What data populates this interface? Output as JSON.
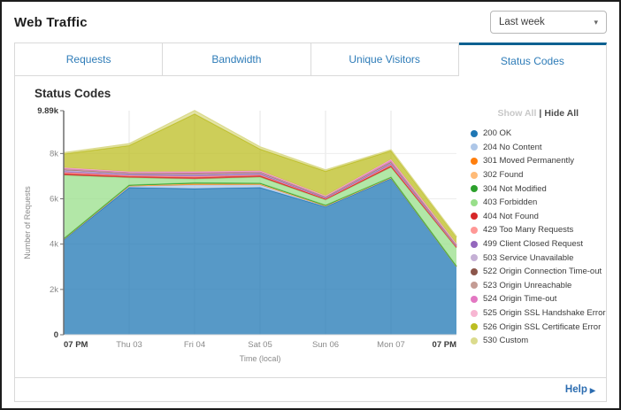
{
  "header": {
    "title": "Web Traffic",
    "period_selector": {
      "value": "Last week",
      "caret_icon": "▾"
    }
  },
  "tabs": [
    {
      "label": "Requests",
      "active": false
    },
    {
      "label": "Bandwidth",
      "active": false
    },
    {
      "label": "Unique Visitors",
      "active": false
    },
    {
      "label": "Status Codes",
      "active": true
    }
  ],
  "panel": {
    "title": "Status Codes"
  },
  "legend": {
    "show_all": "Show All",
    "separator": "|",
    "hide_all": "Hide All"
  },
  "footer": {
    "help_label": "Help",
    "help_arrow": "▶"
  },
  "chart_data": {
    "type": "area",
    "stacked": true,
    "title": "Status Codes",
    "xlabel": "Time (local)",
    "ylabel": "Number of Requests",
    "grid": true,
    "legend_position": "right",
    "ylim": [
      0,
      9890
    ],
    "y_ticks": [
      {
        "value": 0,
        "label": "0"
      },
      {
        "value": 2000,
        "label": "2k"
      },
      {
        "value": 4000,
        "label": "4k"
      },
      {
        "value": 6000,
        "label": "6k"
      },
      {
        "value": 8000,
        "label": "8k"
      },
      {
        "value": 9890,
        "label": "9.89k"
      }
    ],
    "categories": [
      "07 PM",
      "Thu 03",
      "Fri 04",
      "Sat 05",
      "Sun 06",
      "Mon 07",
      "07 PM"
    ],
    "series": [
      {
        "code": "200",
        "name": "200 OK",
        "color": "#1f77b4",
        "values": [
          4200,
          6500,
          6450,
          6500,
          5650,
          6900,
          3000
        ]
      },
      {
        "code": "204",
        "name": "204 No Content",
        "color": "#aec7e8",
        "values": [
          15,
          60,
          160,
          120,
          30,
          25,
          10
        ]
      },
      {
        "code": "301",
        "name": "301 Moved Permanently",
        "color": "#ff7f0e",
        "values": [
          8,
          12,
          30,
          20,
          10,
          10,
          5
        ]
      },
      {
        "code": "302",
        "name": "302 Found",
        "color": "#ffbb78",
        "values": [
          8,
          12,
          25,
          18,
          10,
          8,
          5
        ]
      },
      {
        "code": "304",
        "name": "304 Not Modified",
        "color": "#2ca02c",
        "values": [
          12,
          20,
          40,
          30,
          15,
          12,
          8
        ]
      },
      {
        "code": "403",
        "name": "403 Forbidden",
        "color": "#98df8a",
        "values": [
          2800,
          330,
          170,
          270,
          240,
          440,
          800
        ]
      },
      {
        "code": "404",
        "name": "404 Not Found",
        "color": "#d62728",
        "values": [
          70,
          55,
          65,
          60,
          40,
          60,
          45
        ]
      },
      {
        "code": "429",
        "name": "429 Too Many Requests",
        "color": "#ff9896",
        "values": [
          60,
          45,
          50,
          45,
          30,
          50,
          30
        ]
      },
      {
        "code": "499",
        "name": "499 Client Closed Request",
        "color": "#9467bd",
        "values": [
          35,
          30,
          40,
          30,
          20,
          40,
          20
        ]
      },
      {
        "code": "503",
        "name": "503 Service Unavailable",
        "color": "#c5b0d5",
        "values": [
          65,
          50,
          55,
          50,
          30,
          50,
          30
        ]
      },
      {
        "code": "522",
        "name": "522 Origin Connection Time-out",
        "color": "#8c564b",
        "values": [
          20,
          18,
          25,
          20,
          12,
          25,
          12
        ]
      },
      {
        "code": "523",
        "name": "523 Origin Unreachable",
        "color": "#c49c94",
        "values": [
          15,
          12,
          18,
          15,
          10,
          18,
          8
        ]
      },
      {
        "code": "524",
        "name": "524 Origin Time-out",
        "color": "#e377c2",
        "values": [
          55,
          45,
          60,
          50,
          30,
          85,
          40
        ]
      },
      {
        "code": "525",
        "name": "525 Origin SSL Handshake Error",
        "color": "#f7b6d2",
        "values": [
          15,
          12,
          18,
          15,
          10,
          20,
          8
        ]
      },
      {
        "code": "526",
        "name": "526 Origin SSL Certificate Error",
        "color": "#bcbd22",
        "values": [
          600,
          1150,
          2540,
          950,
          1080,
          380,
          290
        ]
      },
      {
        "code": "530",
        "name": "530 Custom",
        "color": "#dbdb8d",
        "values": [
          60,
          80,
          150,
          100,
          60,
          40,
          25
        ]
      }
    ]
  }
}
